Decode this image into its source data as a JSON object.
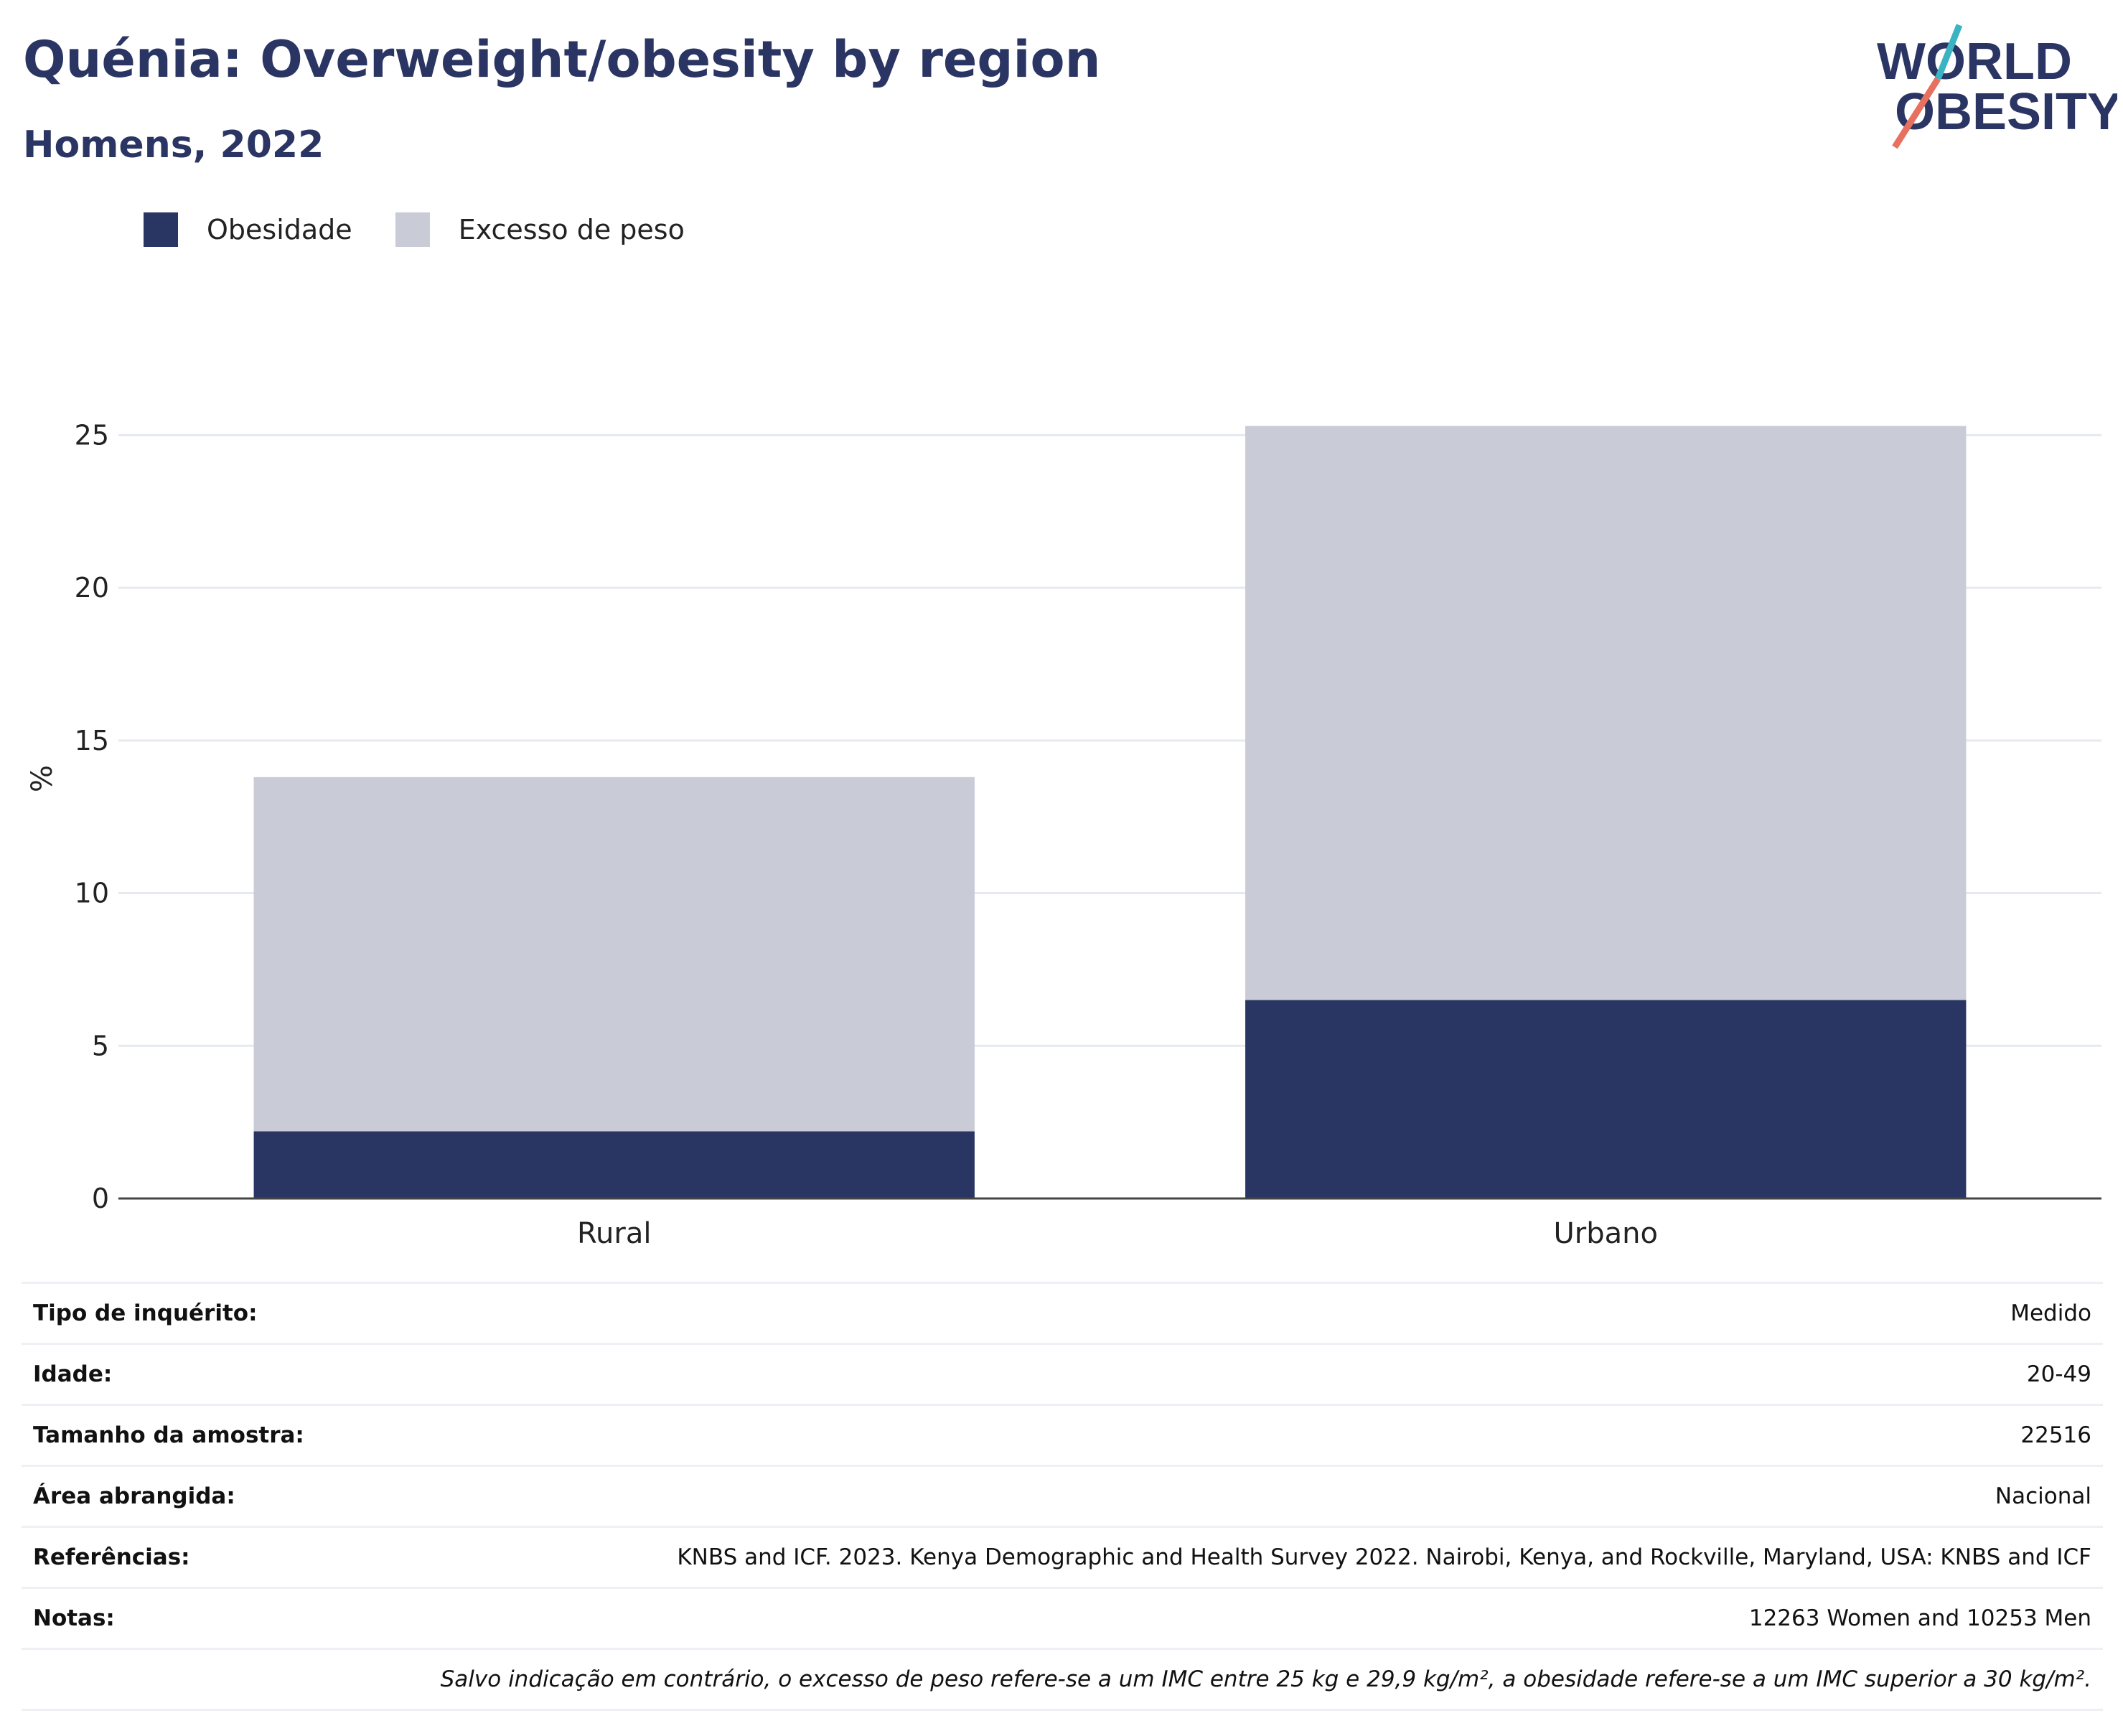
{
  "header": {
    "title": "Quénia: Overweight/obesity by region",
    "subtitle": "Homens, 2022",
    "logo_line1": "WORLD",
    "logo_line2": "OBESITY"
  },
  "colors": {
    "obesity": "#293562",
    "overweight": "#c9cbd7",
    "title": "#2a3563",
    "logo_teal": "#3bb3c3",
    "logo_coral": "#e8705f"
  },
  "chart_data": {
    "type": "bar",
    "stacked": true,
    "categories": [
      "Rural",
      "Urbano"
    ],
    "series": [
      {
        "name": "Obesidade",
        "values": [
          2.2,
          6.5
        ]
      },
      {
        "name": "Excesso de peso",
        "values": [
          11.6,
          18.8
        ]
      }
    ],
    "ylabel": "%",
    "ylim": [
      0,
      27.5
    ],
    "yticks": [
      0,
      5,
      10,
      15,
      20,
      25
    ],
    "grid": true,
    "legend": "top-left"
  },
  "metadata": [
    {
      "label": "Tipo de inquérito:",
      "value": "Medido"
    },
    {
      "label": "Idade:",
      "value": "20-49"
    },
    {
      "label": "Tamanho da amostra:",
      "value": "22516"
    },
    {
      "label": "Área abrangida:",
      "value": "Nacional"
    },
    {
      "label": "Referências:",
      "value": "KNBS and ICF. 2023. Kenya Demographic and Health Survey 2022. Nairobi, Kenya, and Rockville, Maryland, USA: KNBS and ICF"
    },
    {
      "label": "Notas:",
      "value": "12263 Women and 10253 Men"
    }
  ],
  "footnote": "Salvo indicação em contrário, o excesso de peso refere-se a um IMC entre 25 kg e 29,9 kg/m², a obesidade refere-se a um IMC superior a 30 kg/m²."
}
